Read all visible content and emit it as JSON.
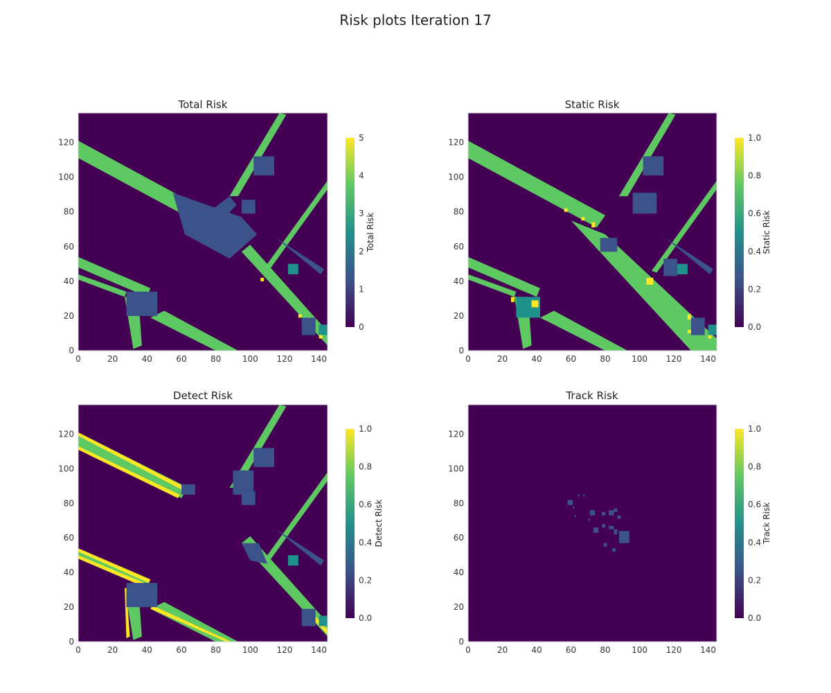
{
  "figure_title": "Risk plots Iteration 17",
  "colors": {
    "background": "#440154",
    "low": "#3b528b",
    "mid": "#21918c",
    "high": "#5ec962",
    "max": "#fde725"
  },
  "chart_data": [
    {
      "type": "heatmap",
      "title": "Total Risk",
      "colorbar_label": "Total Risk",
      "colorbar_ticks": [
        "0",
        "1",
        "2",
        "3",
        "4",
        "5"
      ],
      "colorbar_range": [
        0,
        5
      ],
      "x_range": [
        0,
        145
      ],
      "y_range": [
        0,
        137
      ],
      "x_ticks": [
        "0",
        "20",
        "40",
        "60",
        "80",
        "100",
        "120",
        "140"
      ],
      "y_ticks": [
        "0",
        "20",
        "40",
        "60",
        "80",
        "100",
        "120"
      ],
      "grid": false,
      "colormap": "viridis"
    },
    {
      "type": "heatmap",
      "title": "Static Risk",
      "colorbar_label": "Static Risk",
      "colorbar_ticks": [
        "0.0",
        "0.2",
        "0.4",
        "0.6",
        "0.8",
        "1.0"
      ],
      "colorbar_range": [
        0,
        1
      ],
      "x_range": [
        0,
        145
      ],
      "y_range": [
        0,
        137
      ],
      "x_ticks": [
        "0",
        "20",
        "40",
        "60",
        "80",
        "100",
        "120",
        "140"
      ],
      "y_ticks": [
        "0",
        "20",
        "40",
        "60",
        "80",
        "100",
        "120"
      ],
      "grid": false,
      "colormap": "viridis"
    },
    {
      "type": "heatmap",
      "title": "Detect Risk",
      "colorbar_label": "Detect Risk",
      "colorbar_ticks": [
        "0.0",
        "0.2",
        "0.4",
        "0.6",
        "0.8",
        "1.0"
      ],
      "colorbar_range": [
        0,
        1
      ],
      "x_range": [
        0,
        145
      ],
      "y_range": [
        0,
        137
      ],
      "x_ticks": [
        "0",
        "20",
        "40",
        "60",
        "80",
        "100",
        "120",
        "140"
      ],
      "y_ticks": [
        "0",
        "20",
        "40",
        "60",
        "80",
        "100",
        "120"
      ],
      "grid": false,
      "colormap": "viridis"
    },
    {
      "type": "heatmap",
      "title": "Track Risk",
      "colorbar_label": "Track Risk",
      "colorbar_ticks": [
        "0.0",
        "0.2",
        "0.4",
        "0.6",
        "0.8",
        "1.0"
      ],
      "colorbar_range": [
        0,
        1
      ],
      "x_range": [
        0,
        145
      ],
      "y_range": [
        0,
        137
      ],
      "x_ticks": [
        "0",
        "20",
        "40",
        "60",
        "80",
        "100",
        "120",
        "140"
      ],
      "y_ticks": [
        "0",
        "20",
        "40",
        "60",
        "80",
        "100",
        "120"
      ],
      "grid": false,
      "colormap": "viridis"
    }
  ]
}
